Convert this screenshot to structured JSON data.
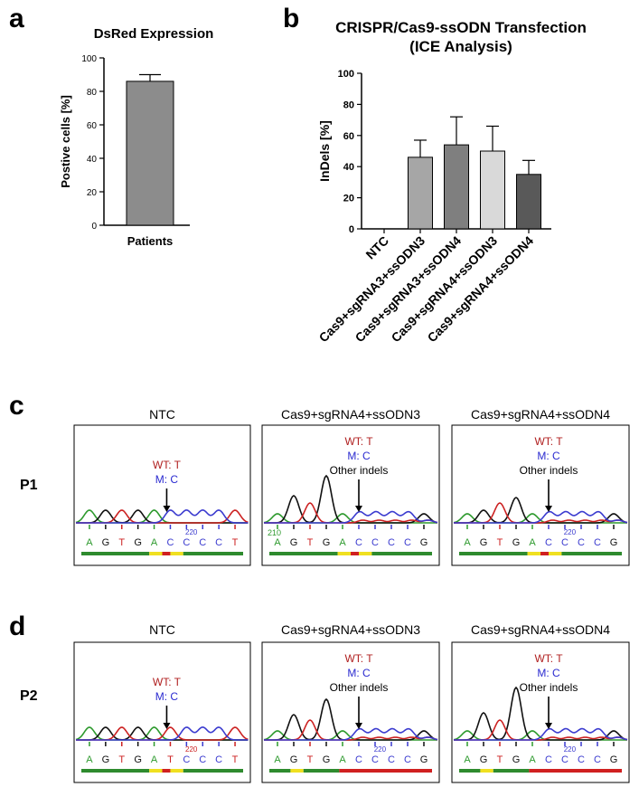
{
  "panel_labels": {
    "a": "a",
    "b": "b",
    "c": "c",
    "d": "d"
  },
  "chart_data": [
    {
      "type": "bar",
      "title": "DsRed Expression",
      "ylabel": "Postive cells [%]",
      "xlabel": "",
      "categories": [
        "Patients"
      ],
      "values": [
        86
      ],
      "errors": [
        4
      ],
      "ylim": [
        0,
        100
      ],
      "yticks": [
        0,
        20,
        40,
        60,
        80,
        100
      ],
      "colors": [
        "#8c8c8c"
      ]
    },
    {
      "type": "bar",
      "title": "CRISPR/Cas9-ssODN Transfection",
      "subtitle": "(ICE Analysis)",
      "ylabel": "InDels [%]",
      "xlabel": "",
      "categories": [
        "NTC",
        "Cas9+sgRNA3+ssODN3",
        "Cas9+sgRNA3+ssODN4",
        "Cas9+sgRNA4+ssODN3",
        "Cas9+sgRNA4+ssODN4"
      ],
      "values": [
        0,
        46,
        54,
        50,
        35
      ],
      "errors": [
        0,
        11,
        18,
        16,
        9
      ],
      "ylim": [
        0,
        100
      ],
      "yticks": [
        0,
        20,
        40,
        60,
        80,
        100
      ],
      "colors": [
        "#ffffff",
        "#a6a6a6",
        "#7f7f7f",
        "#d9d9d9",
        "#595959"
      ]
    }
  ],
  "chromatograms": {
    "column_titles": [
      "NTC",
      "Cas9+sgRNA4+ssODN3",
      "Cas9+sgRNA4+ssODN4"
    ],
    "rows": [
      {
        "label": "P1",
        "panels": [
          {
            "wt": "WT: T",
            "m": "M: C",
            "other": "",
            "bases": [
              "A",
              "G",
              "T",
              "G",
              "A",
              "C",
              "C",
              "C",
              "C",
              "T"
            ],
            "pos_label": "220",
            "pos_label_color": "#3b3bcf",
            "left_pos": ""
          },
          {
            "wt": "WT: T",
            "m": "M: C",
            "other": "Other indels",
            "bases": [
              "A",
              "G",
              "T",
              "G",
              "A",
              "C",
              "C",
              "C",
              "C",
              "G"
            ],
            "pos_label": "",
            "pos_label_color": "#3b3bcf",
            "left_pos": "210"
          },
          {
            "wt": "WT: T",
            "m": "M: C",
            "other": "Other indels",
            "bases": [
              "A",
              "G",
              "T",
              "G",
              "A",
              "C",
              "C",
              "C",
              "C",
              "G"
            ],
            "pos_label": "220",
            "pos_label_color": "#3b3bcf",
            "left_pos": ""
          }
        ]
      },
      {
        "label": "P2",
        "panels": [
          {
            "wt": "WT: T",
            "m": "M: C",
            "other": "",
            "bases": [
              "A",
              "G",
              "T",
              "G",
              "A",
              "T",
              "C",
              "C",
              "C",
              "T"
            ],
            "pos_label": "220",
            "pos_label_color": "#cc2222",
            "left_pos": ""
          },
          {
            "wt": "WT: T",
            "m": "M: C",
            "other": "Other indels",
            "bases": [
              "A",
              "G",
              "T",
              "G",
              "A",
              "C",
              "C",
              "C",
              "C",
              "G"
            ],
            "pos_label": "220",
            "pos_label_color": "#3b3bcf",
            "left_pos": ""
          },
          {
            "wt": "WT: T",
            "m": "M: C",
            "other": "Other indels",
            "bases": [
              "A",
              "G",
              "T",
              "G",
              "A",
              "C",
              "C",
              "C",
              "C",
              "G"
            ],
            "pos_label": "220",
            "pos_label_color": "#3b3bcf",
            "left_pos": ""
          }
        ]
      }
    ]
  },
  "colors": {
    "A": "#2e9a2e",
    "G": "#111111",
    "T": "#cc2222",
    "C": "#3b3bcf",
    "wt": "#b02020",
    "m": "#2a2ad0",
    "bar_quality_green": "#2e8b2e",
    "bar_quality_yellow": "#f0e020",
    "bar_quality_red": "#d02020"
  }
}
